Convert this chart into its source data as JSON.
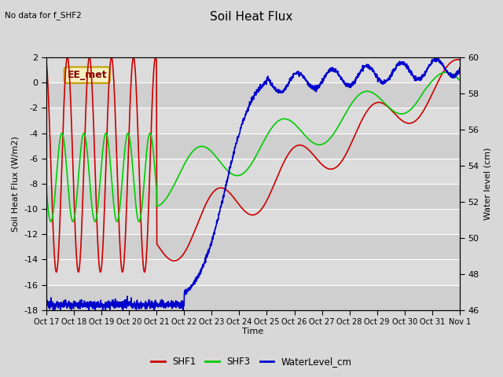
{
  "title": "Soil Heat Flux",
  "top_left_text": "No data for f_SHF2",
  "box_label": "EE_met",
  "ylabel_left": "Soil Heat Flux (W/m2)",
  "ylabel_right": "Water level (cm)",
  "xlabel": "Time",
  "ylim_left": [
    -18,
    2
  ],
  "ylim_right": [
    46,
    60
  ],
  "yticks_left": [
    -18,
    -16,
    -14,
    -12,
    -10,
    -8,
    -6,
    -4,
    -2,
    0,
    2
  ],
  "yticks_right": [
    46,
    48,
    50,
    52,
    54,
    56,
    58,
    60
  ],
  "xtick_labels": [
    "Oct 17",
    "Oct 18",
    "Oct 19",
    "Oct 20",
    "Oct 21",
    "Oct 22",
    "Oct 23",
    "Oct 24",
    "Oct 25",
    "Oct 26",
    "Oct 27",
    "Oct 28",
    "Oct 29",
    "Oct 30",
    "Oct 31",
    "Nov 1"
  ],
  "fig_bg_color": "#d8d8d8",
  "plot_bg_color": "#d8d8d8",
  "shf1_color": "#cc0000",
  "shf3_color": "#00cc00",
  "wl_color": "#0000cc",
  "legend_labels": [
    "SHF1",
    "SHF3",
    "WaterLevel_cm"
  ]
}
